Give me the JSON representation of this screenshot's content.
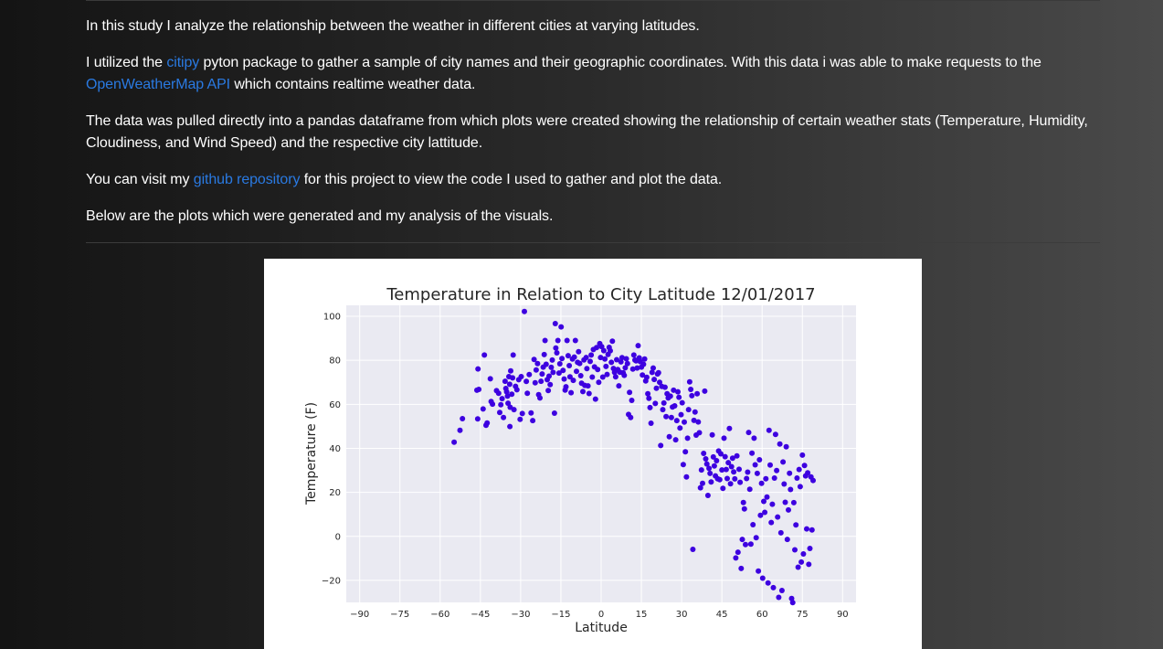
{
  "intro": {
    "p1": "In this study I analyze the relationship between the weather in different cities at varying latitudes.",
    "p2_pre": "I utilized the ",
    "p2_link1": "citipy",
    "p2_mid": " pyton package to gather a sample of city names and their geographic coordinates. With this data i was able to make requests to the ",
    "p2_link2": "OpenWeatherMap API",
    "p2_post": " which contains realtime weather data.",
    "p3": "The data was pulled directly into a pandas dataframe from which plots were created showing the relationship of certain weather stats (Temperature, Humidity, Cloudiness, and Wind Speed) and the respective city lattitude.",
    "p4_pre": "You can visit my ",
    "p4_link": "github repository",
    "p4_post": " for this project to view the code I used to gather and plot the data.",
    "p5": "Below are the plots which were generated and my analysis of the visuals."
  },
  "colors": {
    "link": "#2a7ae2",
    "point": "#3d00e0",
    "plot_bg": "#eaeaf2",
    "grid": "#ffffff"
  },
  "chart_data": {
    "type": "scatter",
    "title": "Temperature in Relation to City Latitude 12/01/2017",
    "xlabel": "Latitude",
    "ylabel": "Temperature (F)",
    "xlim": [
      -95,
      95
    ],
    "ylim": [
      -30,
      105
    ],
    "xticks": [
      -90,
      -75,
      -60,
      -45,
      -30,
      -15,
      0,
      15,
      30,
      45,
      60,
      75,
      90
    ],
    "yticks": [
      -20,
      0,
      20,
      40,
      60,
      80,
      100
    ],
    "xtick_labels": [
      "−90",
      "−75",
      "−60",
      "−45",
      "−30",
      "−15",
      "0",
      "15",
      "30",
      "45",
      "60",
      "75",
      "90"
    ],
    "ytick_labels": [
      "−20",
      "0",
      "20",
      "40",
      "60",
      "80",
      "100"
    ],
    "grid": true,
    "points": [
      [
        -54.8,
        42.8
      ],
      [
        -52.6,
        48.2
      ],
      [
        -51.7,
        53.5
      ],
      [
        -46.3,
        66.4
      ],
      [
        -45.9,
        76.1
      ],
      [
        -45.6,
        66.8
      ],
      [
        -46.0,
        53.4
      ],
      [
        -43.5,
        82.4
      ],
      [
        -44.0,
        57.9
      ],
      [
        -42.9,
        50.5
      ],
      [
        -42.5,
        51.5
      ],
      [
        -41.3,
        71.6
      ],
      [
        -41.0,
        61.3
      ],
      [
        -40.5,
        60.1
      ],
      [
        -39.0,
        66.2
      ],
      [
        -38.2,
        65.0
      ],
      [
        -37.8,
        56.3
      ],
      [
        -37.4,
        59.8
      ],
      [
        -36.9,
        62.6
      ],
      [
        -36.4,
        54.0
      ],
      [
        -35.8,
        70.5
      ],
      [
        -35.5,
        67.2
      ],
      [
        -35.2,
        65.7
      ],
      [
        -34.9,
        63.7
      ],
      [
        -34.7,
        60.5
      ],
      [
        -34.4,
        72.6
      ],
      [
        -34.1,
        69.1
      ],
      [
        -34.0,
        49.9
      ],
      [
        -33.9,
        58.7
      ],
      [
        -33.7,
        75.2
      ],
      [
        -33.3,
        64.6
      ],
      [
        -33.0,
        72.0
      ],
      [
        -32.8,
        82.4
      ],
      [
        -32.5,
        57.6
      ],
      [
        -31.9,
        68.2
      ],
      [
        -31.4,
        66.6
      ],
      [
        -30.7,
        71.2
      ],
      [
        -30.2,
        53.2
      ],
      [
        -29.8,
        72.6
      ],
      [
        -29.4,
        55.8
      ],
      [
        -28.6,
        102.2
      ],
      [
        -27.9,
        70.4
      ],
      [
        -27.5,
        65.0
      ],
      [
        -26.8,
        73.5
      ],
      [
        -26.1,
        56.1
      ],
      [
        -25.5,
        52.6
      ],
      [
        -25.0,
        80.4
      ],
      [
        -24.6,
        69.8
      ],
      [
        -24.2,
        75.6
      ],
      [
        -23.7,
        78.5
      ],
      [
        -23.3,
        64.4
      ],
      [
        -22.8,
        62.9
      ],
      [
        -22.4,
        70.5
      ],
      [
        -22.0,
        73.8
      ],
      [
        -21.6,
        76.9
      ],
      [
        -21.2,
        82.6
      ],
      [
        -20.9,
        89.0
      ],
      [
        -20.5,
        78.2
      ],
      [
        -20.1,
        71.2
      ],
      [
        -19.7,
        66.3
      ],
      [
        -19.4,
        72.8
      ],
      [
        -19.0,
        69.0
      ],
      [
        -18.6,
        76.8
      ],
      [
        -18.2,
        80.1
      ],
      [
        -17.9,
        74.5
      ],
      [
        -17.4,
        56.0
      ],
      [
        -17.1,
        96.7
      ],
      [
        -16.9,
        85.6
      ],
      [
        -16.5,
        83.4
      ],
      [
        -16.1,
        89.0
      ],
      [
        -15.7,
        74.2
      ],
      [
        -15.4,
        78.4
      ],
      [
        -14.9,
        95.2
      ],
      [
        -14.6,
        80.8
      ],
      [
        -14.2,
        75.4
      ],
      [
        -13.8,
        71.5
      ],
      [
        -13.4,
        66.5
      ],
      [
        -13.1,
        68.0
      ],
      [
        -12.7,
        89.0
      ],
      [
        -12.3,
        82.1
      ],
      [
        -11.9,
        77.6
      ],
      [
        -11.6,
        72.5
      ],
      [
        -11.2,
        65.3
      ],
      [
        -10.7,
        80.6
      ],
      [
        -10.4,
        70.9
      ],
      [
        -10.0,
        81.5
      ],
      [
        -9.6,
        89.0
      ],
      [
        -9.2,
        75.0
      ],
      [
        -8.8,
        79.1
      ],
      [
        -8.4,
        83.9
      ],
      [
        -8.0,
        78.6
      ],
      [
        -7.6,
        73.0
      ],
      [
        -7.3,
        69.6
      ],
      [
        -6.8,
        65.8
      ],
      [
        -6.4,
        80.2
      ],
      [
        -6.1,
        68.6
      ],
      [
        -5.6,
        81.3
      ],
      [
        -5.3,
        76.2
      ],
      [
        -4.9,
        68.4
      ],
      [
        -4.5,
        64.9
      ],
      [
        -4.1,
        79.5
      ],
      [
        -3.7,
        82.4
      ],
      [
        -3.3,
        72.4
      ],
      [
        -2.9,
        84.9
      ],
      [
        -2.5,
        77.0
      ],
      [
        -2.1,
        62.4
      ],
      [
        -1.7,
        85.8
      ],
      [
        -1.3,
        75.8
      ],
      [
        -0.9,
        70.0
      ],
      [
        -0.5,
        87.6
      ],
      [
        -0.2,
        81.3
      ],
      [
        0.2,
        86.2
      ],
      [
        0.6,
        72.4
      ],
      [
        1.0,
        84.4
      ],
      [
        1.4,
        80.6
      ],
      [
        1.8,
        77.2
      ],
      [
        2.2,
        73.6
      ],
      [
        2.6,
        82.7
      ],
      [
        3.0,
        85.9
      ],
      [
        3.4,
        84.3
      ],
      [
        3.8,
        79.1
      ],
      [
        4.2,
        88.7
      ],
      [
        4.6,
        76.3
      ],
      [
        5.0,
        74.5
      ],
      [
        5.4,
        72.5
      ],
      [
        5.8,
        80.3
      ],
      [
        6.2,
        75.8
      ],
      [
        6.6,
        68.4
      ],
      [
        7.0,
        74.6
      ],
      [
        7.4,
        79.3
      ],
      [
        7.8,
        81.2
      ],
      [
        8.2,
        74.3
      ],
      [
        8.6,
        73.2
      ],
      [
        9.0,
        76.6
      ],
      [
        9.4,
        80.7
      ],
      [
        9.8,
        78.5
      ],
      [
        10.2,
        55.4
      ],
      [
        10.6,
        65.4
      ],
      [
        11.0,
        54.0
      ],
      [
        11.4,
        61.8
      ],
      [
        11.8,
        76.0
      ],
      [
        12.2,
        82.4
      ],
      [
        12.6,
        80.1
      ],
      [
        13.0,
        79.8
      ],
      [
        13.4,
        76.5
      ],
      [
        13.8,
        86.7
      ],
      [
        14.2,
        81.1
      ],
      [
        14.6,
        79.4
      ],
      [
        15.0,
        76.9
      ],
      [
        15.4,
        73.3
      ],
      [
        15.8,
        78.2
      ],
      [
        16.2,
        80.6
      ],
      [
        16.6,
        70.6
      ],
      [
        17.0,
        72.3
      ],
      [
        17.4,
        64.8
      ],
      [
        17.8,
        62.7
      ],
      [
        18.2,
        58.5
      ],
      [
        18.6,
        51.4
      ],
      [
        19.0,
        74.5
      ],
      [
        19.4,
        76.5
      ],
      [
        19.8,
        71.3
      ],
      [
        20.2,
        60.4
      ],
      [
        20.6,
        67.3
      ],
      [
        21.0,
        73.8
      ],
      [
        21.4,
        74.4
      ],
      [
        21.8,
        70.0
      ],
      [
        22.2,
        41.3
      ],
      [
        22.6,
        68.1
      ],
      [
        23.0,
        57.6
      ],
      [
        23.4,
        60.6
      ],
      [
        23.8,
        67.8
      ],
      [
        24.2,
        54.4
      ],
      [
        24.6,
        64.8
      ],
      [
        25.0,
        62.9
      ],
      [
        25.4,
        45.3
      ],
      [
        25.8,
        63.7
      ],
      [
        26.2,
        54.0
      ],
      [
        26.6,
        58.8
      ],
      [
        27.0,
        66.4
      ],
      [
        27.4,
        59.3
      ],
      [
        27.8,
        43.9
      ],
      [
        28.2,
        52.6
      ],
      [
        28.6,
        65.7
      ],
      [
        29.0,
        63.2
      ],
      [
        29.4,
        49.2
      ],
      [
        29.8,
        55.3
      ],
      [
        30.2,
        60.7
      ],
      [
        30.6,
        32.6
      ],
      [
        31.0,
        51.9
      ],
      [
        31.4,
        38.4
      ],
      [
        31.8,
        27.0
      ],
      [
        32.2,
        44.6
      ],
      [
        32.6,
        57.6
      ],
      [
        33.0,
        70.2
      ],
      [
        33.4,
        66.8
      ],
      [
        33.8,
        63.9
      ],
      [
        34.2,
        -5.9
      ],
      [
        34.6,
        52.7
      ],
      [
        35.0,
        56.5
      ],
      [
        35.4,
        46.0
      ],
      [
        35.8,
        64.8
      ],
      [
        36.2,
        52.0
      ],
      [
        36.6,
        47.1
      ],
      [
        37.0,
        22.1
      ],
      [
        37.4,
        30.2
      ],
      [
        37.8,
        24.1
      ],
      [
        38.2,
        37.7
      ],
      [
        38.6,
        66.0
      ],
      [
        39.0,
        35.2
      ],
      [
        39.4,
        32.9
      ],
      [
        39.8,
        18.6
      ],
      [
        40.2,
        30.9
      ],
      [
        40.6,
        28.6
      ],
      [
        41.0,
        24.7
      ],
      [
        41.4,
        46.1
      ],
      [
        41.8,
        36.1
      ],
      [
        42.2,
        32.0
      ],
      [
        42.6,
        27.5
      ],
      [
        43.0,
        34.4
      ],
      [
        43.4,
        26.2
      ],
      [
        43.8,
        38.8
      ],
      [
        44.2,
        25.8
      ],
      [
        44.6,
        37.5
      ],
      [
        45.0,
        30.2
      ],
      [
        45.4,
        21.8
      ],
      [
        45.8,
        44.6
      ],
      [
        46.2,
        36.2
      ],
      [
        46.6,
        30.4
      ],
      [
        47.0,
        26.3
      ],
      [
        47.4,
        33.5
      ],
      [
        47.8,
        49.0
      ],
      [
        48.2,
        23.9
      ],
      [
        48.6,
        31.7
      ],
      [
        49.0,
        35.5
      ],
      [
        49.4,
        29.3
      ],
      [
        49.8,
        26.1
      ],
      [
        50.2,
        -9.8
      ],
      [
        50.6,
        36.6
      ],
      [
        51.0,
        -7.2
      ],
      [
        51.4,
        30.5
      ],
      [
        51.8,
        24.6
      ],
      [
        52.2,
        -14.6
      ],
      [
        52.6,
        -1.4
      ],
      [
        53.0,
        15.4
      ],
      [
        53.4,
        12.5
      ],
      [
        53.8,
        -3.7
      ],
      [
        54.2,
        26.3
      ],
      [
        54.6,
        29.2
      ],
      [
        55.0,
        47.2
      ],
      [
        55.4,
        21.4
      ],
      [
        55.8,
        -3.5
      ],
      [
        56.2,
        37.8
      ],
      [
        56.6,
        5.3
      ],
      [
        57.0,
        44.6
      ],
      [
        57.4,
        32.5
      ],
      [
        57.8,
        -0.6
      ],
      [
        58.2,
        28.6
      ],
      [
        58.6,
        -15.8
      ],
      [
        59.0,
        34.8
      ],
      [
        59.4,
        9.6
      ],
      [
        59.8,
        24.1
      ],
      [
        60.2,
        -19.0
      ],
      [
        60.6,
        15.9
      ],
      [
        61.0,
        10.9
      ],
      [
        61.4,
        26.2
      ],
      [
        61.8,
        17.9
      ],
      [
        62.2,
        -21.2
      ],
      [
        62.6,
        48.2
      ],
      [
        63.0,
        32.4
      ],
      [
        63.4,
        6.3
      ],
      [
        63.8,
        14.6
      ],
      [
        64.2,
        -23.3
      ],
      [
        64.6,
        26.5
      ],
      [
        65.0,
        46.3
      ],
      [
        65.4,
        29.9
      ],
      [
        65.8,
        8.8
      ],
      [
        66.2,
        -27.7
      ],
      [
        66.6,
        42.0
      ],
      [
        67.0,
        1.6
      ],
      [
        67.4,
        -24.6
      ],
      [
        67.8,
        33.8
      ],
      [
        68.2,
        23.8
      ],
      [
        68.6,
        15.5
      ],
      [
        69.0,
        40.7
      ],
      [
        69.4,
        -1.4
      ],
      [
        69.8,
        12.0
      ],
      [
        70.2,
        28.7
      ],
      [
        70.6,
        21.3
      ],
      [
        71.0,
        -28.2
      ],
      [
        71.4,
        -30.1
      ],
      [
        71.8,
        15.3
      ],
      [
        72.2,
        -6.1
      ],
      [
        72.6,
        5.2
      ],
      [
        73.0,
        26.5
      ],
      [
        73.4,
        -14.0
      ],
      [
        73.8,
        30.4
      ],
      [
        74.2,
        22.6
      ],
      [
        74.6,
        -11.7
      ],
      [
        75.0,
        36.9
      ],
      [
        75.4,
        -8.0
      ],
      [
        75.8,
        32.2
      ],
      [
        76.2,
        27.5
      ],
      [
        76.6,
        3.4
      ],
      [
        77.0,
        28.9
      ],
      [
        77.4,
        -12.7
      ],
      [
        77.8,
        -5.5
      ],
      [
        78.2,
        27.0
      ],
      [
        78.6,
        2.9
      ],
      [
        79.0,
        25.4
      ]
    ]
  }
}
